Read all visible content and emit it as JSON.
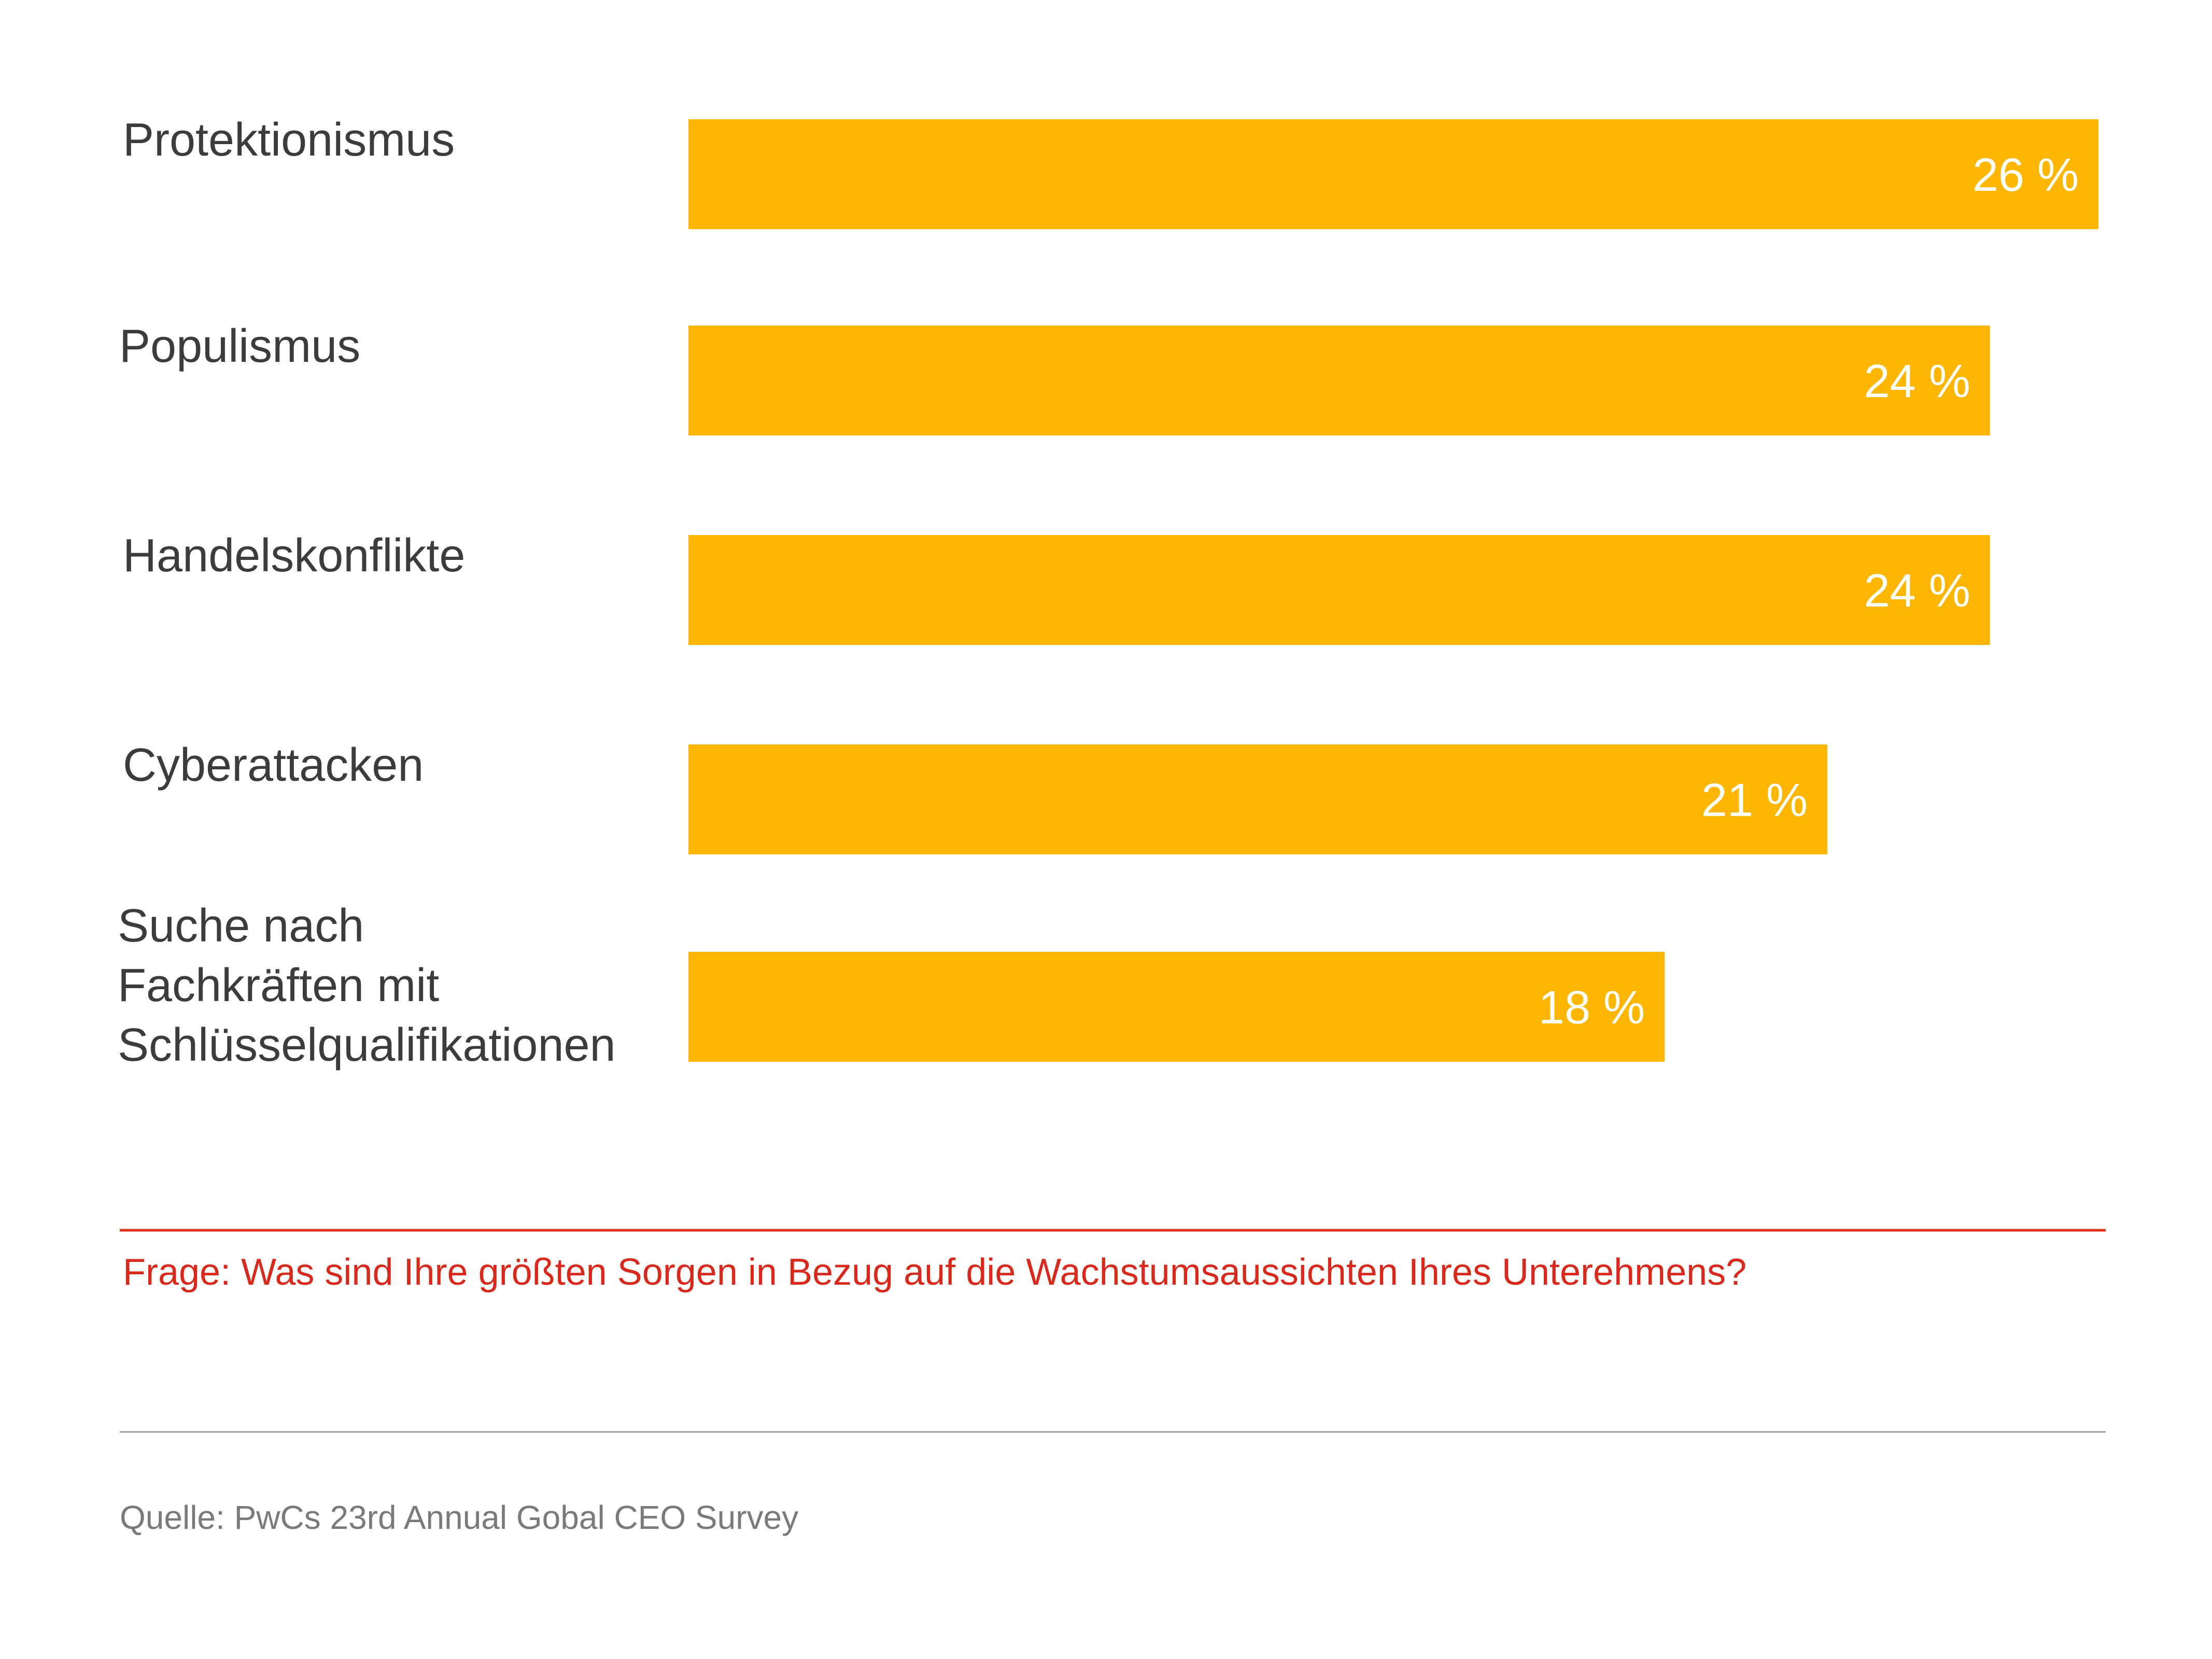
{
  "chart_data": {
    "type": "bar",
    "orientation": "horizontal",
    "categories": [
      [
        "Protektionismus"
      ],
      [
        "Populismus"
      ],
      [
        "Handelskonflikte"
      ],
      [
        "Cyberattacken"
      ],
      [
        "Suche nach",
        "Fachkräften mit",
        "Schlüsselqualifikationen"
      ]
    ],
    "values": [
      26,
      24,
      24,
      21,
      18
    ],
    "value_labels": [
      "26 %",
      "24 %",
      "24 %",
      "21 %",
      "18 %"
    ],
    "unit": "%",
    "xlim": [
      0,
      26
    ],
    "grid": false,
    "legend": "none"
  },
  "footnote": {
    "question": "Frage: Was sind Ihre größten Sorgen in Bezug auf die Wachstumsaussichten Ihres Unterehmens?",
    "source": "Quelle: PwCs 23rd Annual Gobal CEO Survey"
  },
  "colors": {
    "bar": "#FFB600",
    "divider_red": "#E0301E",
    "divider_gray": "#9b9b9b",
    "label_text": "#3c3c3c",
    "question_text": "#d9291c",
    "source_text": "#7a7a7a"
  }
}
